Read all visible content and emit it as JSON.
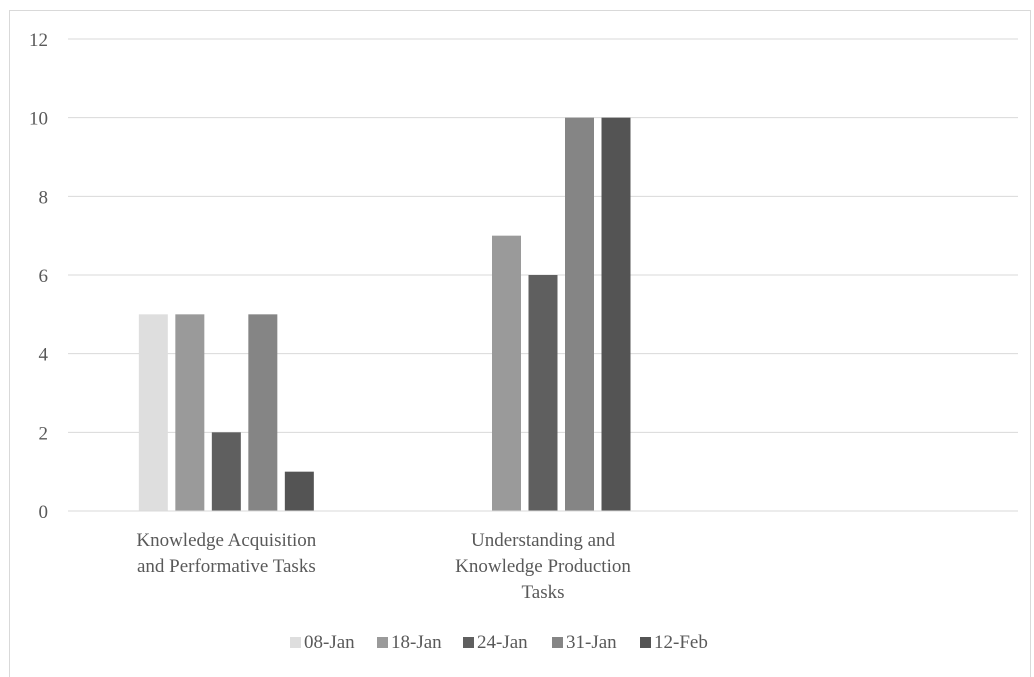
{
  "chart_data": {
    "type": "bar",
    "categories": [
      [
        "Knowledge Acquisition",
        "and Performative Tasks"
      ],
      [
        "Understanding and",
        "Knowledge Production",
        "Tasks"
      ],
      [
        ""
      ]
    ],
    "series": [
      {
        "name": "08-Jan",
        "color": "#dedede",
        "values": [
          5,
          0,
          0
        ]
      },
      {
        "name": "18-Jan",
        "color": "#9a9a9a",
        "values": [
          5,
          7,
          0
        ]
      },
      {
        "name": "24-Jan",
        "color": "#5f5f5f",
        "values": [
          2,
          6,
          0
        ]
      },
      {
        "name": "31-Jan",
        "color": "#858585",
        "values": [
          5,
          10,
          0
        ]
      },
      {
        "name": "12-Feb",
        "color": "#545454",
        "values": [
          1,
          10,
          0
        ]
      }
    ],
    "yticks": [
      "0",
      "2",
      "4",
      "6",
      "8",
      "10",
      "12"
    ],
    "ylim": [
      0,
      12
    ],
    "grid": true,
    "legend": "bottom"
  }
}
